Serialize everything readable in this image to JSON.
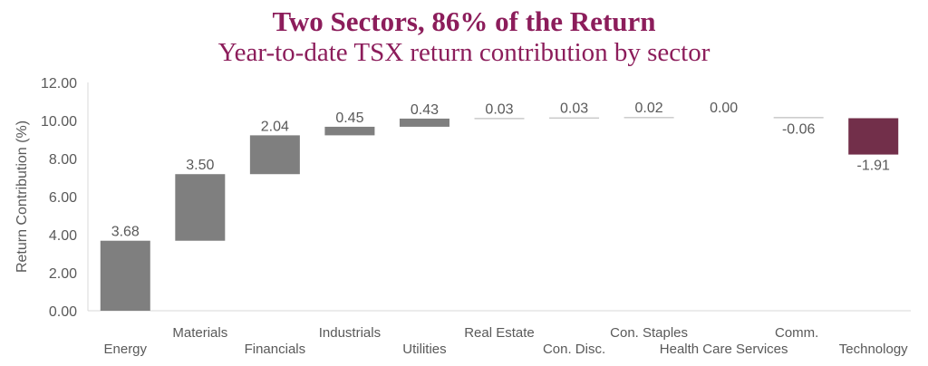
{
  "chart_data": {
    "type": "waterfall",
    "title": "Two Sectors, 86% of the Return",
    "subtitle": "Year-to-date TSX return  contribution by sector",
    "xlabel": "",
    "ylabel": "Return Contribution (%)",
    "ylim": [
      0,
      12
    ],
    "yticks": [
      "0.00",
      "2.00",
      "4.00",
      "6.00",
      "8.00",
      "10.00",
      "12.00"
    ],
    "grid": false,
    "categories": [
      "Energy",
      "Materials",
      "Financials",
      "Industrials",
      "Utilities",
      "Real Estate",
      "Con. Disc.",
      "Con. Staples",
      "Health Care Services",
      "Comm.",
      "Technology"
    ],
    "values": [
      3.68,
      3.5,
      2.04,
      0.45,
      0.43,
      0.03,
      0.03,
      0.02,
      0.0,
      -0.06,
      -1.91
    ],
    "value_labels": [
      "3.68",
      "3.50",
      "2.04",
      "0.45",
      "0.43",
      "0.03",
      "0.03",
      "0.02",
      "0.00",
      "-0.06",
      "-1.91"
    ],
    "colors": {
      "default": "#7f7f7f",
      "highlight": "#722f4a",
      "title": "#8c1d5b"
    },
    "highlight_category": "Technology"
  }
}
